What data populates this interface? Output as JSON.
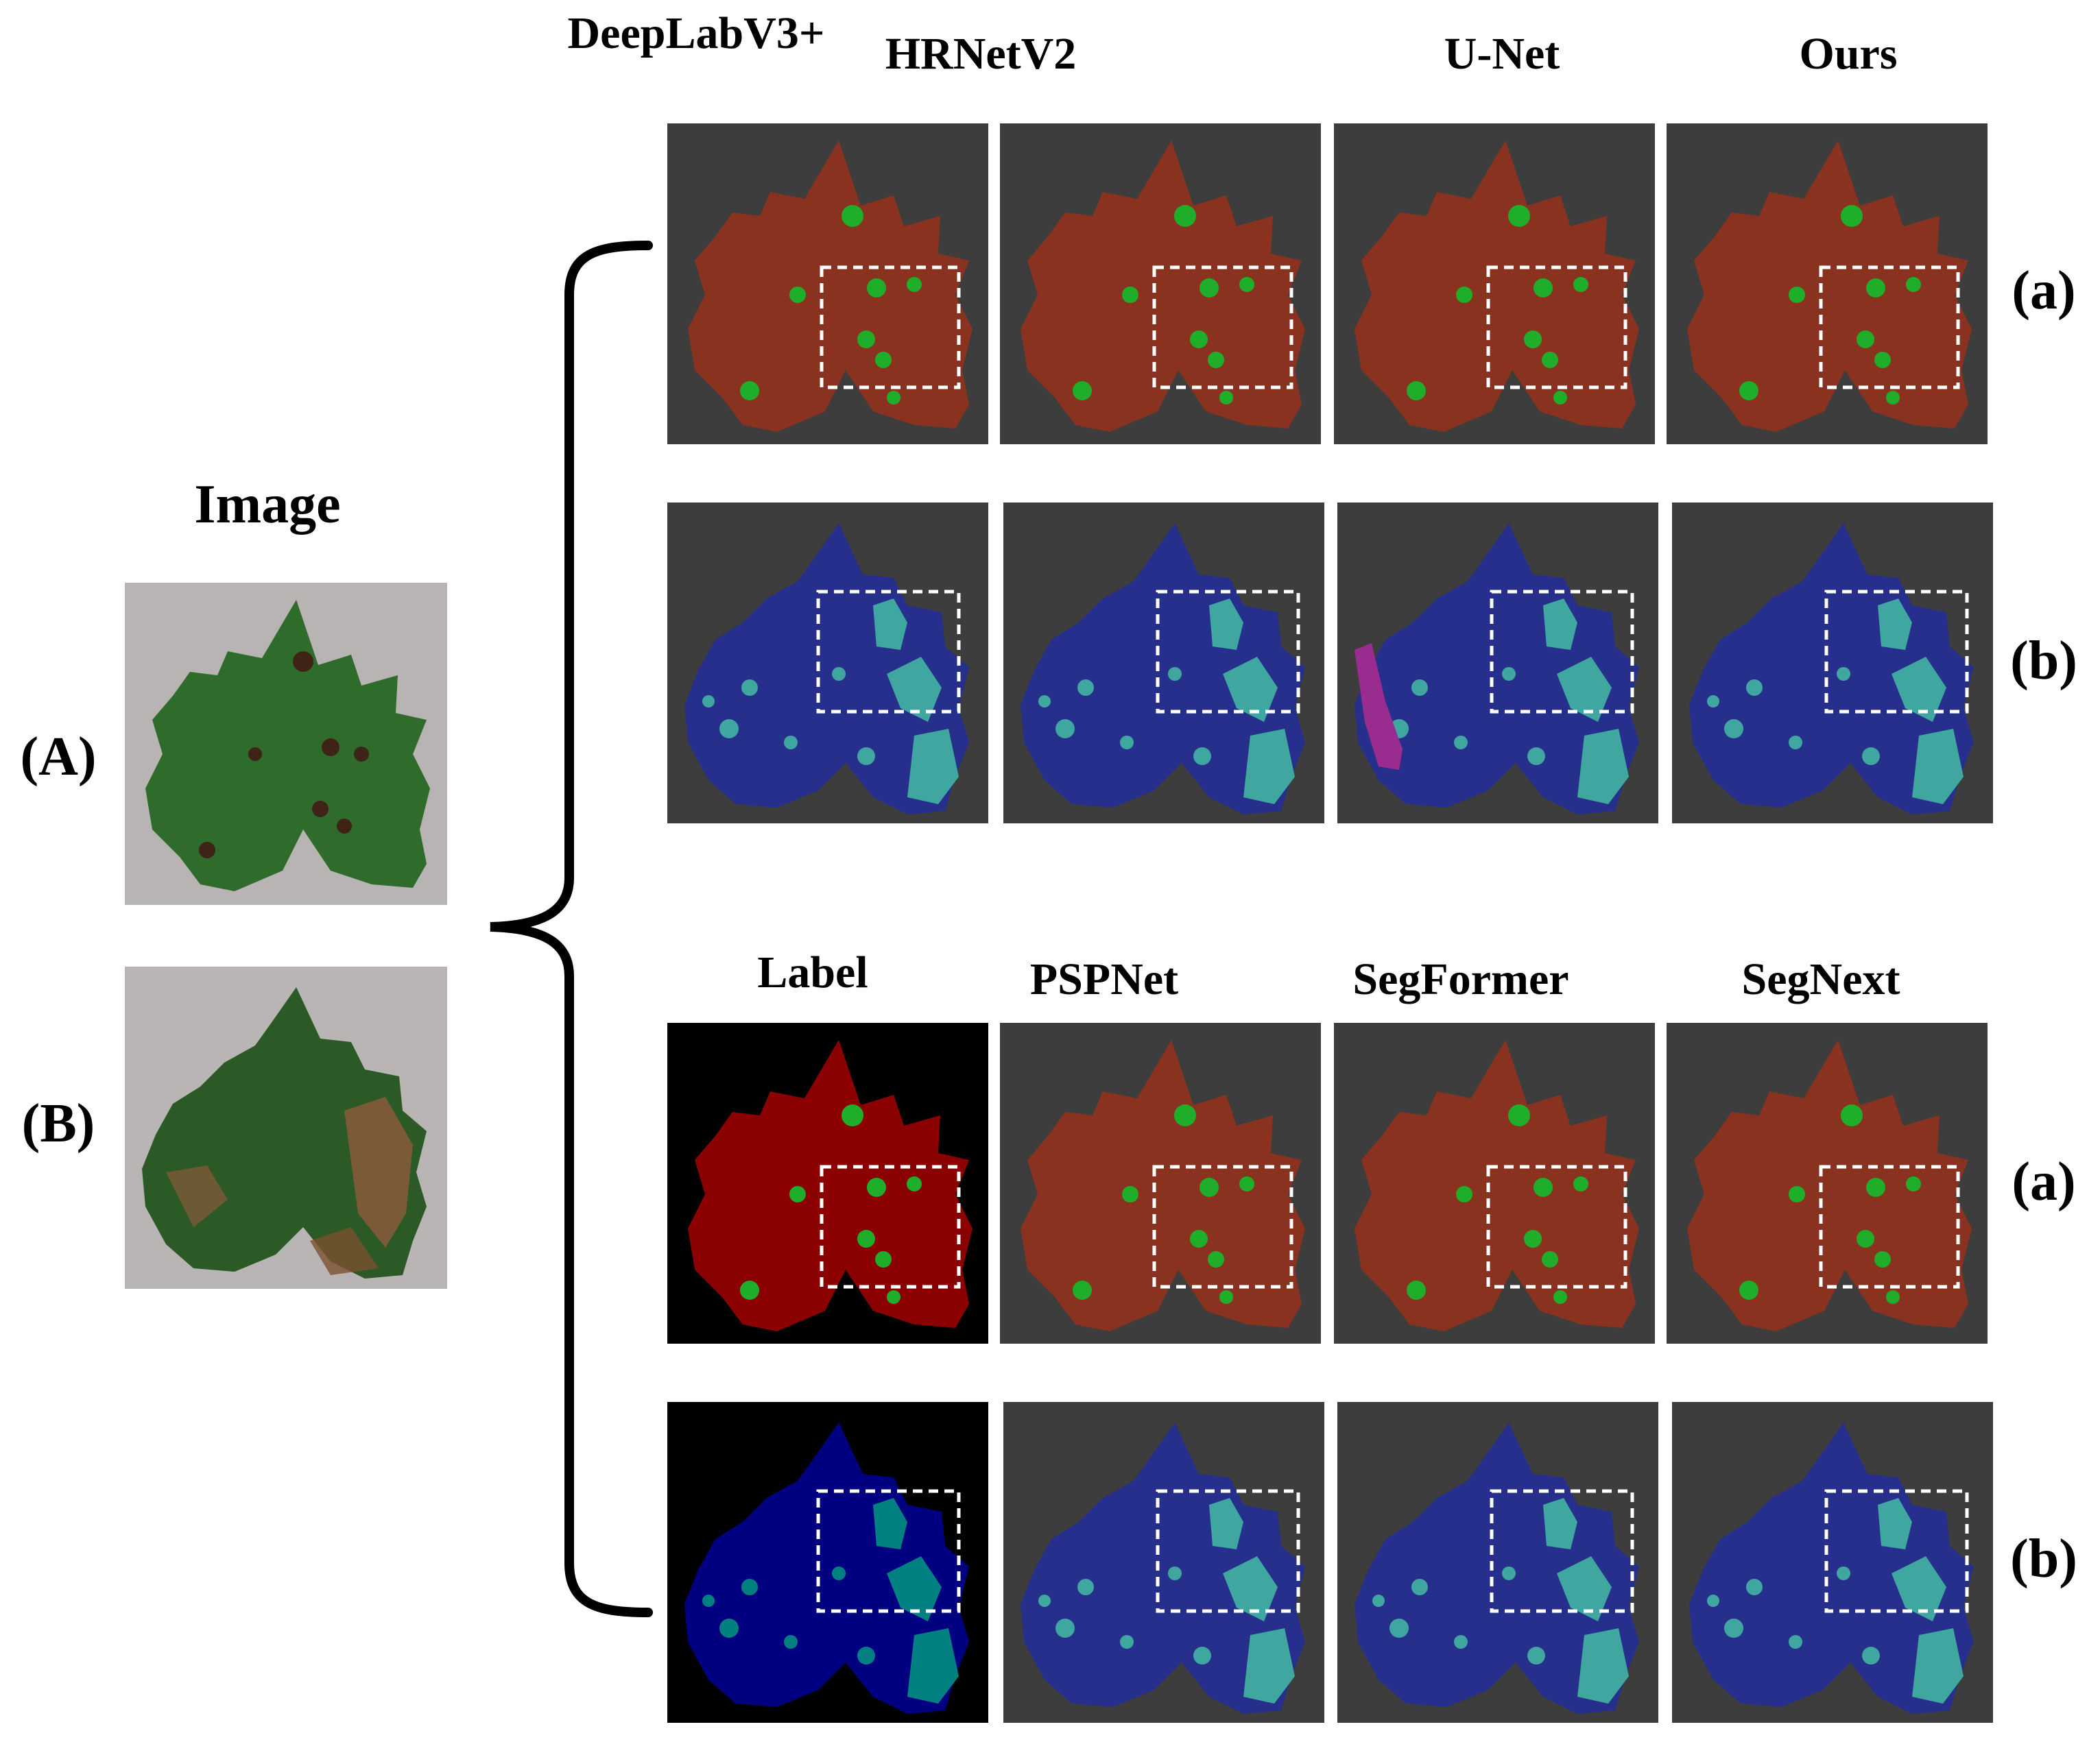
{
  "figure": {
    "input_header": "Image",
    "input_labels": [
      "(A)",
      "(B)"
    ],
    "row_labels": [
      "(a)",
      "(b)",
      "(a)",
      "(b)"
    ],
    "top_columns": [
      "DeepLabV3+",
      "HRNetV2",
      "U-Net",
      "Ours"
    ],
    "bottom_columns": [
      "Label",
      "PSPNet",
      "SegFormer",
      "SegNext"
    ]
  },
  "colors": {
    "background_panel": "#3d3d3d",
    "label_background": "#000000",
    "leaf_red_overlay": "#8a3220",
    "label_red": "#8b0000",
    "lesion_green": "#1fae2a",
    "leaf_blue_overlay": "#26308c",
    "label_blue": "#000080",
    "lesion_teal": "#3fa6a0",
    "label_teal": "#008080",
    "magenta_error": "#9a2c8f",
    "zoom_box": "#ffffff"
  },
  "icons": [
    "curly-brace-icon",
    "zoom-box-icon"
  ]
}
